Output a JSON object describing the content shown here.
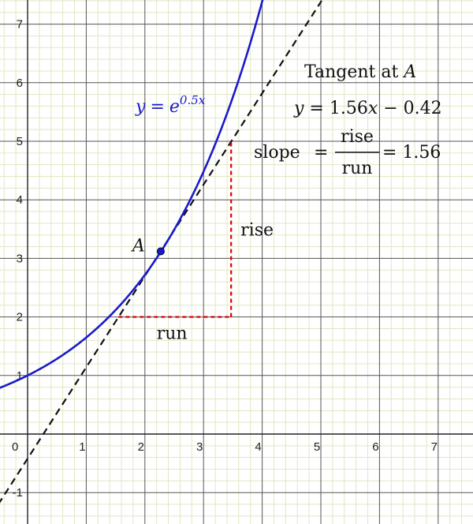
{
  "chart_data": {
    "type": "line",
    "xlim": [
      -0.5,
      7.6
    ],
    "ylim": [
      -1.5,
      7.4
    ],
    "grid": true,
    "x_ticks": [
      "0",
      "1",
      "2",
      "3",
      "4",
      "5",
      "6",
      "7"
    ],
    "y_ticks": [
      "-1",
      "1",
      "2",
      "3",
      "4",
      "5",
      "6",
      "7"
    ],
    "curve": {
      "label_y": "y",
      "label_eq": "=",
      "label_base": "e",
      "label_exp": "0.5x",
      "k": 0.5,
      "color": "#1a1acc"
    },
    "tangent": {
      "slope": 1.56,
      "intercept": -0.42,
      "color": "#111111"
    },
    "point_A": {
      "label": "A",
      "x": 2.27,
      "y": 3.12,
      "color": "#1a1acc"
    },
    "triangle": {
      "x1": 1.55,
      "y1": 2.0,
      "x2": 3.47,
      "y2": 5.0,
      "run_label": "run",
      "rise_label": "rise",
      "color": "#dd0000"
    },
    "annotation": {
      "title_prefix": "Tangent at ",
      "title_point": "A",
      "eq_y": "y",
      "eq_mid": " = 1.56",
      "eq_x": "x",
      "eq_end": " − 0.42",
      "slope_word": "slope",
      "frac_num": "rise",
      "frac_den": "run",
      "slope_value": "= 1.56"
    }
  }
}
